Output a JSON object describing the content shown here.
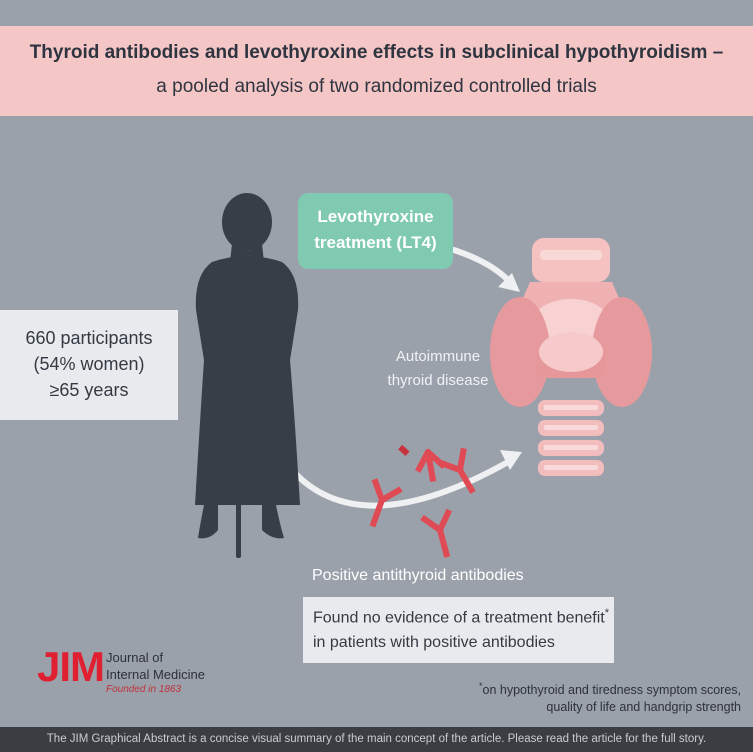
{
  "header": {
    "title": "Thyroid antibodies and levothyroxine effects in subclinical hypothyroidism –",
    "subtitle": "a pooled analysis of two randomized controlled trials"
  },
  "participants": {
    "line1": "660 participants",
    "line2": "(54% women)",
    "line3": "≥65 years"
  },
  "treatment": {
    "line1": "Levothyroxine",
    "line2": "treatment (LT4)"
  },
  "thyroid": {
    "line1": "Autoimmune",
    "line2": "thyroid disease"
  },
  "antibodies": {
    "label": "Positive antithyroid antibodies"
  },
  "finding": {
    "line1": "Found no evidence of a treatment benefit",
    "line1_mark": "*",
    "line2": "in patients with positive antibodies"
  },
  "footnote": {
    "mark": "*",
    "line1": "on hypothyroid and tiredness symptom scores,",
    "line2": "quality of life and handgrip strength"
  },
  "journal": {
    "logo": "JIM",
    "name_line1": "Journal of",
    "name_line2": "Internal Medicine",
    "founded": "Founded in 1863"
  },
  "bottom_bar": {
    "text": "The JIM Graphical Abstract is a concise visual summary of the main concept of the article. Please read the article for the full story."
  },
  "colors": {
    "background": "#9aa1aa",
    "title_bar": "#f4c6c6",
    "treatment_box": "#7fcab0",
    "thyroid": "#e9a3a5",
    "antibody": "#e04a55",
    "silhouette": "#383e47",
    "jim_red": "#e02030"
  }
}
